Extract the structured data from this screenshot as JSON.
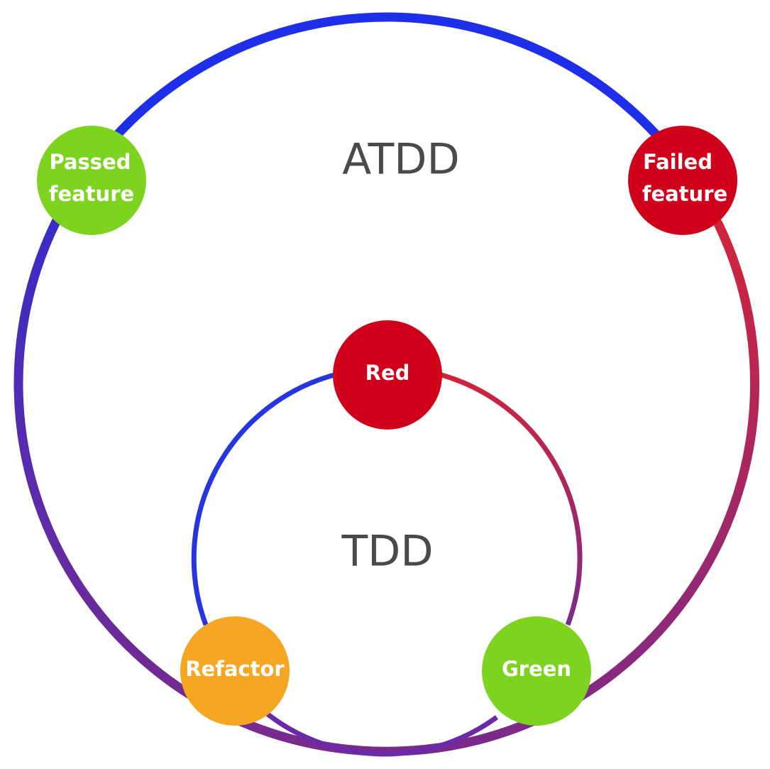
{
  "outer_cycle": {
    "title": "ATDD",
    "nodes": {
      "passed": {
        "line1": "Passed",
        "line2": "feature",
        "color": "#7ed321"
      },
      "failed": {
        "line1": "Failed",
        "line2": "feature",
        "color": "#d0021b"
      }
    }
  },
  "inner_cycle": {
    "title": "TDD",
    "nodes": {
      "red": {
        "label": "Red",
        "color": "#d0021b"
      },
      "green": {
        "label": "Green",
        "color": "#7ed321"
      },
      "refactor": {
        "label": "Refactor",
        "color": "#f5a623"
      }
    }
  },
  "colors": {
    "ring_blue": "#1f2ee8",
    "ring_red": "#d0243a",
    "ring_purple": "#6a2aa8",
    "title_text": "#4a4a4a"
  }
}
